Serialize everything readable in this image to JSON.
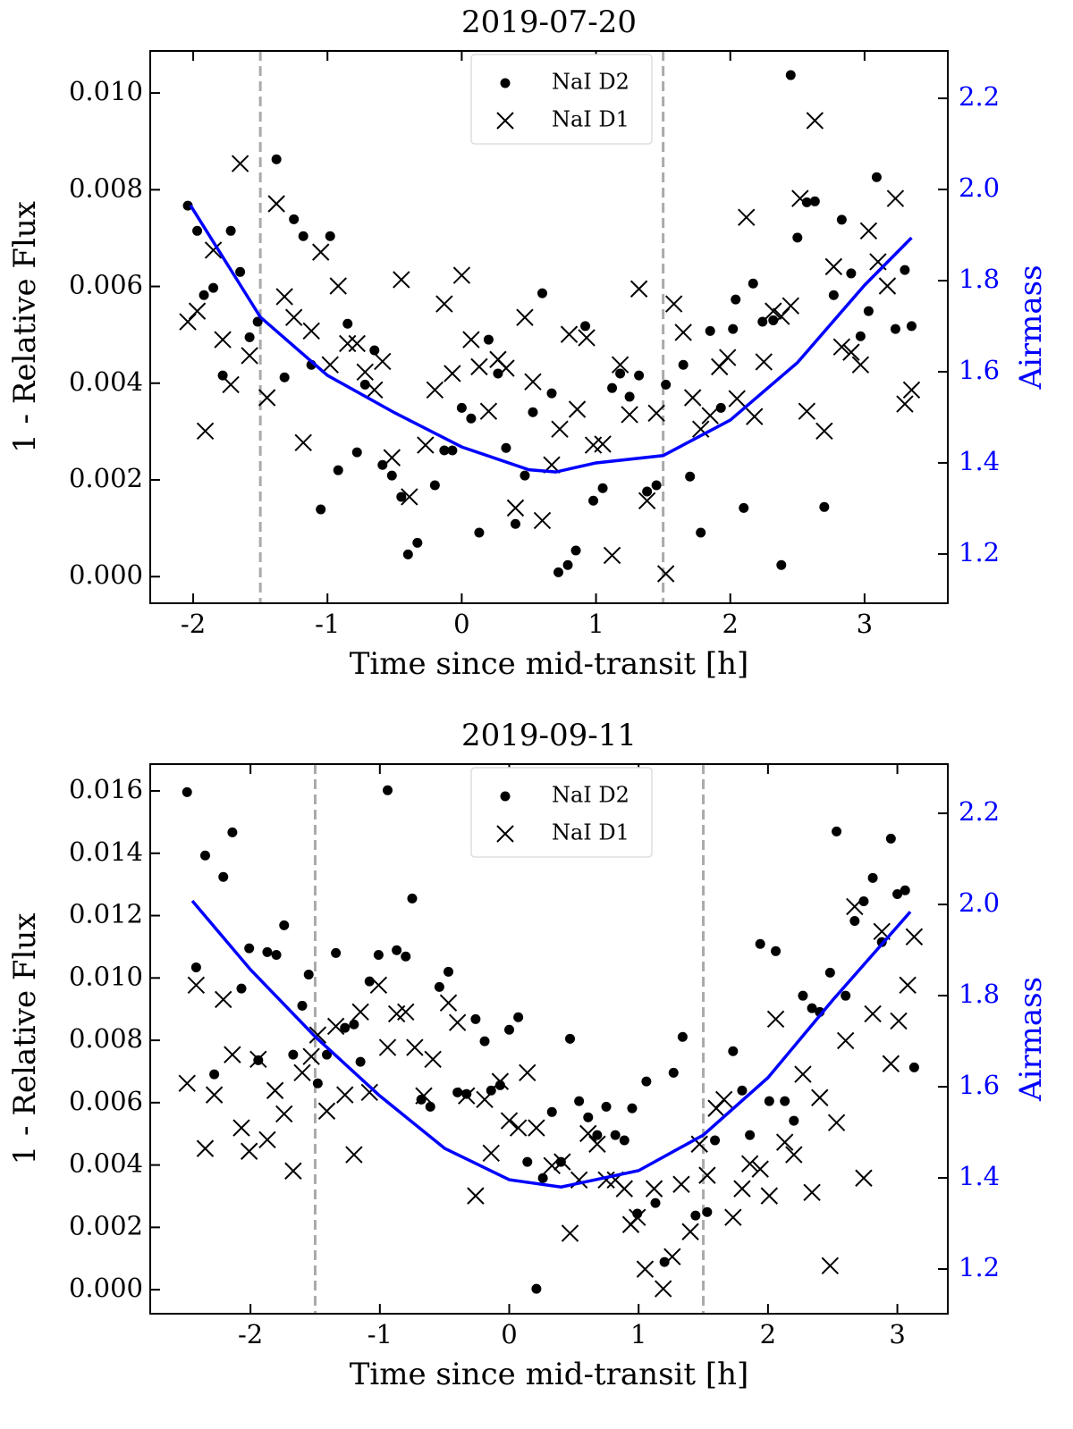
{
  "chart_data": [
    {
      "type": "scatter",
      "title": "2019-07-20",
      "xlabel": "Time since mid-transit [h]",
      "ylabel": "1 - Relative Flux",
      "y2label": "Airmass",
      "xlim": [
        -2.32,
        3.62
      ],
      "ylim": [
        -0.00055,
        0.01087
      ],
      "y2lim": [
        1.092,
        2.304
      ],
      "xticks": [
        -2,
        -1,
        0,
        1,
        2,
        3
      ],
      "yticks": [
        {
          "value": 0,
          "label": "0.000"
        },
        0.002,
        0.004,
        0.006,
        0.008,
        {
          "value": 0.01,
          "label": "0.010"
        }
      ],
      "y2ticks": [
        1.2,
        1.4,
        1.6,
        1.8,
        {
          "value": 2.0,
          "label": "2.0"
        },
        2.2
      ],
      "vlines": [
        -1.5,
        1.5
      ],
      "legend": "upper center",
      "series": [
        {
          "name": "NaI D2",
          "marker": "o",
          "color": "#000000",
          "x": [
            -2.04,
            -1.97,
            -1.92,
            -1.85,
            -1.72,
            -1.78,
            -1.65,
            -1.58,
            -1.52,
            -1.38,
            -1.32,
            -1.25,
            -1.18,
            -1.12,
            -1.05,
            -0.98,
            -0.92,
            -0.85,
            -0.78,
            -0.72,
            -0.65,
            -0.59,
            -0.52,
            -0.45,
            -0.4,
            -0.33,
            -0.2,
            -0.13,
            -0.07,
            0,
            0.07,
            0.13,
            0.2,
            0.27,
            0.33,
            0.4,
            0.47,
            0.53,
            0.6,
            0.67,
            0.72,
            0.79,
            0.85,
            0.92,
            0.98,
            1.05,
            1.12,
            1.18,
            1.25,
            1.32,
            1.38,
            1.45,
            1.52,
            1.65,
            1.7,
            1.78,
            1.85,
            1.93,
            2.02,
            2.04,
            2.1,
            2.17,
            2.24,
            2.32,
            2.38,
            2.45,
            2.5,
            2.57,
            2.63,
            2.7,
            2.77,
            2.83,
            2.9,
            2.97,
            3.03,
            3.09,
            3.23,
            3.3,
            3.35
          ],
          "values": [
            0.00767,
            0.00715,
            0.00582,
            0.00597,
            0.00715,
            0.00416,
            0.0063,
            0.00495,
            0.00527,
            0.00863,
            0.00412,
            0.00739,
            0.00704,
            0.00438,
            0.00139,
            0.00704,
            0.0022,
            0.00523,
            0.00257,
            0.00397,
            0.00468,
            0.00231,
            0.00209,
            0.00165,
            0.00046,
            0.0007,
            0.00189,
            0.00261,
            0.00261,
            0.00349,
            0.00327,
            0.00091,
            0.0049,
            0.0042,
            0.00266,
            0.00109,
            0.00209,
            0.0034,
            0.00586,
            0.00379,
            9e-05,
            0.00024,
            0.00054,
            0.00518,
            0.00157,
            0.00183,
            0.0039,
            0.0042,
            0.00372,
            0.00416,
            0.00176,
            0.00189,
            0.00397,
            0.00438,
            0.00207,
            0.00091,
            0.00508,
            0.00349,
            0.00512,
            0.00573,
            0.00142,
            0.00606,
            0.00527,
            0.0053,
            0.00024,
            0.01037,
            0.00701,
            0.00774,
            0.00776,
            0.00144,
            0.00582,
            0.00738,
            0.00627,
            0.00497,
            0.00549,
            0.00826,
            0.00512,
            0.00634,
            0.00518
          ]
        },
        {
          "name": "NaI D1",
          "marker": "x",
          "color": "#000000",
          "x": [
            -2.04,
            -1.97,
            -1.91,
            -1.85,
            -1.78,
            -1.72,
            -1.65,
            -1.58,
            -1.45,
            -1.38,
            -1.32,
            -1.25,
            -1.18,
            -1.12,
            -1.05,
            -0.98,
            -0.92,
            -0.85,
            -0.78,
            -0.72,
            -0.65,
            -0.59,
            -0.52,
            -0.45,
            -0.39,
            -0.27,
            -0.2,
            -0.13,
            -0.07,
            0,
            0.07,
            0.13,
            0.2,
            0.27,
            0.33,
            0.4,
            0.47,
            0.53,
            0.6,
            0.67,
            0.73,
            0.8,
            0.86,
            0.93,
            0.98,
            1.05,
            1.12,
            1.18,
            1.25,
            1.32,
            1.38,
            1.45,
            1.52,
            1.58,
            1.65,
            1.72,
            1.78,
            1.85,
            1.92,
            1.98,
            2.05,
            2.12,
            2.18,
            2.25,
            2.32,
            2.38,
            2.45,
            2.52,
            2.57,
            2.63,
            2.7,
            2.77,
            2.83,
            2.9,
            2.97,
            3.03,
            3.1,
            3.17,
            3.23,
            3.3,
            3.35
          ],
          "values": [
            0.00527,
            0.00549,
            0.00301,
            0.00675,
            0.0049,
            0.00397,
            0.00854,
            0.00457,
            0.0037,
            0.00771,
            0.00579,
            0.00536,
            0.00277,
            0.00508,
            0.00671,
            0.00438,
            0.00601,
            0.00482,
            0.00482,
            0.00423,
            0.00386,
            0.00445,
            0.00246,
            0.00614,
            0.00165,
            0.00272,
            0.00386,
            0.00564,
            0.0042,
            0.00623,
            0.0049,
            0.00434,
            0.00342,
            0.00449,
            0.00431,
            0.00142,
            0.00536,
            0.00403,
            0.00116,
            0.00231,
            0.00305,
            0.00501,
            0.00346,
            0.00494,
            0.00272,
            0.00274,
            0.00044,
            0.00438,
            0.00335,
            0.00595,
            0.00157,
            0.00338,
            6e-05,
            0.00564,
            0.00505,
            0.0037,
            0.00305,
            0.00333,
            0.00434,
            0.00453,
            0.00368,
            0.00743,
            0.00331,
            0.00444,
            0.00549,
            0.00538,
            0.0056,
            0.00782,
            0.00342,
            0.00943,
            0.00301,
            0.00641,
            0.00475,
            0.00464,
            0.00438,
            0.00715,
            0.00651,
            0.00601,
            0.00782,
            0.00357,
            0.00386
          ]
        }
      ],
      "airmass": {
        "color": "#0000ff",
        "axis": "y2",
        "x": [
          -2.02,
          -1.5,
          -1,
          -0.5,
          0,
          0.5,
          0.7,
          1,
          1.5,
          2,
          2.5,
          3,
          3.35
        ],
        "values": [
          1.965,
          1.72,
          1.592,
          1.51,
          1.435,
          1.385,
          1.38,
          1.4,
          1.416,
          1.494,
          1.62,
          1.79,
          1.894
        ]
      }
    },
    {
      "type": "scatter",
      "title": "2019-09-11",
      "xlabel": "Time since mid-transit [h]",
      "ylabel": "1 - Relative Flux",
      "y2label": "Airmass",
      "xlim": [
        -2.775,
        3.39
      ],
      "ylim": [
        -0.00077,
        0.01686
      ],
      "y2lim": [
        1.102,
        2.308
      ],
      "xticks": [
        -2,
        -1,
        0,
        1,
        2,
        3
      ],
      "yticks": [
        {
          "value": 0,
          "label": "0.000"
        },
        0.002,
        0.004,
        0.006,
        0.008,
        {
          "value": 0.01,
          "label": "0.010"
        },
        0.012,
        0.014,
        0.016
      ],
      "y2ticks": [
        1.2,
        1.4,
        1.6,
        1.8,
        {
          "value": 2.0,
          "label": "2.0"
        },
        2.2
      ],
      "vlines": [
        -1.5,
        1.5
      ],
      "legend": "upper center",
      "series": [
        {
          "name": "NaI D2",
          "marker": "o",
          "color": "#000000",
          "x": [
            -2.49,
            -2.42,
            -2.35,
            -2.28,
            -2.21,
            -2.14,
            -2.07,
            -2.01,
            -1.94,
            -1.87,
            -1.8,
            -1.74,
            -1.67,
            -1.6,
            -1.55,
            -1.48,
            -1.41,
            -1.34,
            -1.27,
            -1.2,
            -1.15,
            -1.08,
            -1.01,
            -0.94,
            -0.87,
            -0.8,
            -0.75,
            -0.68,
            -0.61,
            -0.54,
            -0.47,
            -0.4,
            -0.33,
            -0.26,
            -0.19,
            -0.14,
            -0.07,
            0,
            0.07,
            0.14,
            0.21,
            0.26,
            0.33,
            0.4,
            0.47,
            0.54,
            0.61,
            0.68,
            0.75,
            0.82,
            0.89,
            0.95,
            0.99,
            1.06,
            1.13,
            1.2,
            1.27,
            1.34,
            1.44,
            1.53,
            1.59,
            1.73,
            1.8,
            1.86,
            1.94,
            2.01,
            2.06,
            2.13,
            2.2,
            2.27,
            2.34,
            2.4,
            2.48,
            2.53,
            2.6,
            2.67,
            2.74,
            2.81,
            2.88,
            2.95,
            3,
            3.06,
            3.13
          ],
          "values": [
            0.01596,
            0.01034,
            0.01393,
            0.00691,
            0.01324,
            0.01467,
            0.00966,
            0.01095,
            0.00736,
            0.01083,
            0.01074,
            0.01169,
            0.00754,
            0.00911,
            0.01011,
            0.00662,
            0.00754,
            0.0108,
            0.0084,
            0.00851,
            0.00731,
            0.00989,
            0.01074,
            0.01602,
            0.01089,
            0.01069,
            0.01255,
            0.0061,
            0.00587,
            0.00971,
            0.0102,
            0.00633,
            0.00628,
            0.00868,
            0.00797,
            0.00639,
            0.00656,
            0.00834,
            0.00874,
            0.0041,
            3e-05,
            0.00358,
            0.0057,
            0.0041,
            0.00805,
            0.00605,
            0.00553,
            0.00496,
            0.00587,
            0.00496,
            0.00479,
            0.00582,
            0.00244,
            0.00668,
            0.00278,
            0.00089,
            0.00696,
            0.00811,
            0.00238,
            0.00249,
            0.00479,
            0.00765,
            0.00639,
            0.00496,
            0.01109,
            0.00605,
            0.01086,
            0.00605,
            0.00542,
            0.00943,
            0.00903,
            0.00891,
            0.01017,
            0.0147,
            0.00943,
            0.01183,
            0.01246,
            0.01321,
            0.01115,
            0.01447,
            0.01269,
            0.01281,
            0.00713
          ]
        },
        {
          "name": "NaI D1",
          "marker": "x",
          "color": "#000000",
          "x": [
            -2.49,
            -2.42,
            -2.35,
            -2.28,
            -2.21,
            -2.14,
            -2.07,
            -2.01,
            -1.94,
            -1.87,
            -1.81,
            -1.74,
            -1.67,
            -1.6,
            -1.53,
            -1.48,
            -1.41,
            -1.34,
            -1.27,
            -1.2,
            -1.15,
            -1.08,
            -1.01,
            -0.94,
            -0.87,
            -0.8,
            -0.73,
            -0.66,
            -0.59,
            -0.47,
            -0.4,
            -0.33,
            -0.26,
            -0.19,
            -0.14,
            -0.07,
            0,
            0.07,
            0.14,
            0.21,
            0.33,
            0.41,
            0.47,
            0.54,
            0.61,
            0.68,
            0.75,
            0.82,
            0.89,
            0.94,
            0.99,
            1.05,
            1.12,
            1.19,
            1.26,
            1.33,
            1.4,
            1.47,
            1.53,
            1.6,
            1.66,
            1.73,
            1.8,
            1.86,
            1.94,
            2.01,
            2.06,
            2.13,
            2.2,
            2.27,
            2.34,
            2.4,
            2.48,
            2.53,
            2.6,
            2.67,
            2.74,
            2.81,
            2.88,
            2.95,
            3.01,
            3.08,
            3.13
          ],
          "values": [
            0.00662,
            0.00977,
            0.00453,
            0.00625,
            0.00931,
            0.00754,
            0.00519,
            0.00444,
            0.00739,
            0.00481,
            0.00639,
            0.00564,
            0.00381,
            0.00696,
            0.00748,
            0.00817,
            0.00573,
            0.00845,
            0.00625,
            0.00433,
            0.00891,
            0.00633,
            0.00977,
            0.00777,
            0.00885,
            0.00891,
            0.00777,
            0.00622,
            0.00739,
            0.0092,
            0.00857,
            0.00622,
            0.00301,
            0.0061,
            0.00438,
            0.00668,
            0.00542,
            0.00519,
            0.00696,
            0.00519,
            0.00398,
            0.0041,
            0.00181,
            0.00352,
            0.00501,
            0.00467,
            0.00352,
            0.00352,
            0.00324,
            0.00209,
            0.00232,
            0.00066,
            0.00324,
            3e-05,
            0.00106,
            0.00338,
            0.00186,
            0.00467,
            0.00367,
            0.00582,
            0.0061,
            0.00232,
            0.00324,
            0.00404,
            0.00387,
            0.00301,
            0.00868,
            0.00473,
            0.00433,
            0.00691,
            0.00312,
            0.00616,
            0.00077,
            0.00536,
            0.00799,
            0.01229,
            0.00358,
            0.00885,
            0.01149,
            0.00725,
            0.00862,
            0.00977,
            0.01132
          ]
        }
      ],
      "airmass": {
        "color": "#0000ff",
        "axis": "y2",
        "x": [
          -2.45,
          -2,
          -1.5,
          -1,
          -0.5,
          0,
          0.4,
          1,
          1.5,
          2,
          2.5,
          3.1
        ],
        "values": [
          2.008,
          1.857,
          1.71,
          1.58,
          1.465,
          1.396,
          1.38,
          1.416,
          1.494,
          1.62,
          1.79,
          1.984
        ]
      }
    }
  ]
}
